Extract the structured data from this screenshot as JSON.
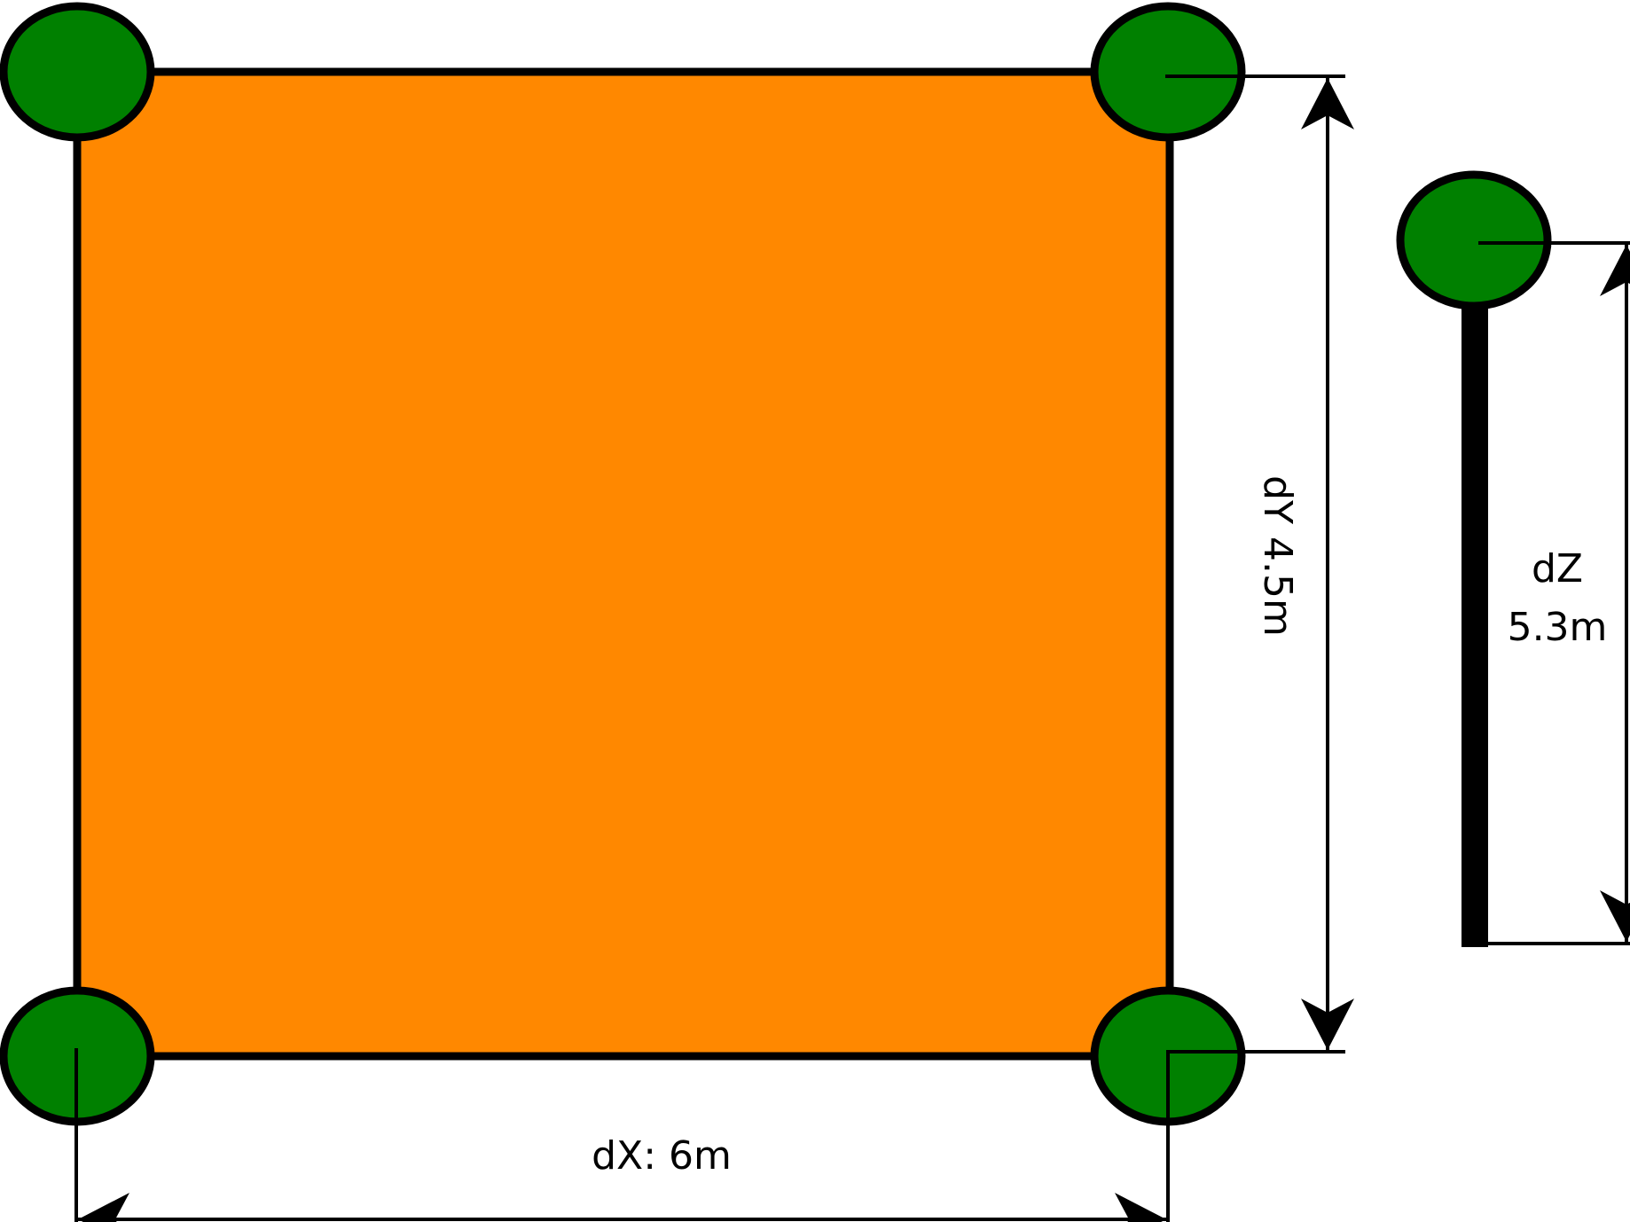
{
  "dimensions": {
    "dx_label": "dX: 6m",
    "dy_label": "dY 4.5m",
    "dz_label_line1": "dZ",
    "dz_label_line2": "5.3m"
  },
  "colors": {
    "plate_fill": "#FF8800",
    "node_fill": "#008000",
    "stroke": "#000000",
    "background": "#FFFFFF"
  }
}
